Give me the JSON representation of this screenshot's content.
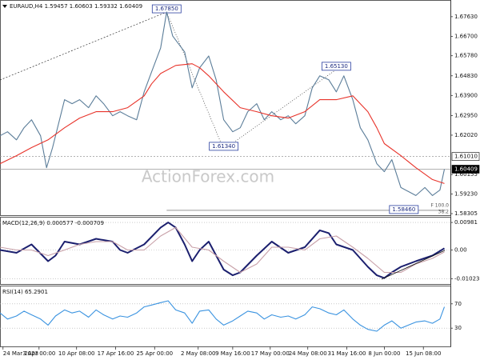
{
  "watermark": "ActionForex.com",
  "chart_data": [
    {
      "type": "line",
      "title": "EURAUD,H4  1.59457 1.60603 1.59332 1.60409",
      "xlim": [
        0,
        300
      ],
      "ylim": [
        1.5823,
        1.6842
      ],
      "xticks": [
        {
          "value": 2,
          "label": "24 Mar 2023"
        },
        {
          "value": 26,
          "label": "3 Apr 00:00"
        },
        {
          "value": 51,
          "label": "10 Apr 08:00"
        },
        {
          "value": 77,
          "label": "17 Apr 16:00"
        },
        {
          "value": 103,
          "label": "25 Apr 00:00"
        },
        {
          "value": 132,
          "label": "2 May 08:00"
        },
        {
          "value": 155,
          "label": "9 May 16:00"
        },
        {
          "value": 180,
          "label": "17 May 00:00"
        },
        {
          "value": 205,
          "label": "24 May 08:00"
        },
        {
          "value": 231,
          "label": "31 May 16:00"
        },
        {
          "value": 256,
          "label": "8 Jun 00:00"
        },
        {
          "value": 282,
          "label": "15 Jun 08:00"
        }
      ],
      "yticks": [
        {
          "value": 1.6763,
          "label": "1.67630"
        },
        {
          "value": 1.667,
          "label": "1.66700"
        },
        {
          "value": 1.6578,
          "label": "1.65780"
        },
        {
          "value": 1.6483,
          "label": "1.64830"
        },
        {
          "value": 1.639,
          "label": "1.63900"
        },
        {
          "value": 1.6295,
          "label": "1.62950"
        },
        {
          "value": 1.6202,
          "label": "1.62020"
        },
        {
          "value": 1.60155,
          "label": "1.60155"
        },
        {
          "value": 1.5923,
          "label": "1.59230"
        },
        {
          "value": 1.58305,
          "label": "1.58305"
        }
      ],
      "series": [
        {
          "color": "#5b7d99",
          "x": [
            0,
            5,
            11,
            16,
            21,
            27,
            31,
            35,
            37,
            43,
            48,
            53,
            59,
            64,
            69,
            75,
            80,
            85,
            91,
            96,
            101,
            107,
            111,
            115,
            123,
            128,
            133,
            139,
            144,
            149,
            155,
            160,
            165,
            171,
            176,
            181,
            187,
            192,
            197,
            203,
            208,
            213,
            219,
            224,
            229,
            235,
            240,
            245,
            251,
            256,
            261,
            267,
            272,
            277,
            283,
            288,
            293,
            296
          ],
          "values": [
            1.6199,
            1.6218,
            1.618,
            1.6237,
            1.6275,
            1.6199,
            1.6048,
            1.6143,
            1.6199,
            1.637,
            1.6351,
            1.637,
            1.6332,
            1.6388,
            1.6351,
            1.6294,
            1.6313,
            1.6294,
            1.6275,
            1.6407,
            1.6502,
            1.6615,
            1.6785,
            1.6672,
            1.6596,
            1.6426,
            1.6521,
            1.6577,
            1.6464,
            1.6275,
            1.6218,
            1.6237,
            1.6313,
            1.6351,
            1.6275,
            1.6313,
            1.6275,
            1.6294,
            1.6256,
            1.6294,
            1.6426,
            1.6483,
            1.6464,
            1.6407,
            1.6483,
            1.637,
            1.6237,
            1.618,
            1.6067,
            1.6029,
            1.6086,
            1.5954,
            1.5935,
            1.5916,
            1.5954,
            1.5916,
            1.5942,
            1.6041
          ]
        },
        {
          "color": "#e8332a",
          "x": [
            0,
            11,
            21,
            32,
            43,
            53,
            64,
            75,
            85,
            96,
            101,
            107,
            117,
            128,
            133,
            139,
            149,
            160,
            171,
            181,
            192,
            203,
            213,
            224,
            235,
            245,
            251,
            256,
            267,
            277,
            288,
            296
          ],
          "values": [
            1.6067,
            1.6105,
            1.6143,
            1.618,
            1.6237,
            1.6283,
            1.6313,
            1.6313,
            1.6332,
            1.6388,
            1.6445,
            1.6494,
            1.6532,
            1.654,
            1.6521,
            1.6483,
            1.6407,
            1.6332,
            1.6313,
            1.6294,
            1.6283,
            1.6313,
            1.637,
            1.637,
            1.6388,
            1.6313,
            1.6237,
            1.6162,
            1.6105,
            1.6048,
            1.5992,
            1.5973
          ]
        }
      ],
      "annotations": [
        {
          "x": 111,
          "value": 1.6785,
          "label": "1.67850"
        },
        {
          "x": 149,
          "value": 1.6134,
          "label": "1.61340"
        },
        {
          "x": 224,
          "value": 1.6513,
          "label": "1.65130"
        },
        {
          "x": 269,
          "value": 1.5846,
          "label": "1.58460"
        }
      ],
      "price_lines": [
        {
          "value": 1.6101,
          "label": "1.61010",
          "color": "#ffffff"
        },
        {
          "value": 1.60409,
          "label": "1.60409",
          "color": "#000000"
        }
      ],
      "fib_labels": [
        "F 100.0",
        "38.2"
      ]
    },
    {
      "type": "line",
      "title": "MACD(12,26,9) 0.000577 -0.000709",
      "xlim": [
        0,
        300
      ],
      "ylim": [
        -0.01212,
        0.01183
      ],
      "yticks": [
        0.00981,
        {
          "value": 0,
          "label": "0.00"
        },
        -0.010235
      ],
      "series": [
        {
          "color": "#1b1f6e",
          "x": [
            0,
            11,
            21,
            32,
            37,
            43,
            53,
            64,
            75,
            80,
            85,
            96,
            107,
            112,
            117,
            123,
            128,
            133,
            139,
            149,
            155,
            160,
            171,
            181,
            192,
            203,
            213,
            219,
            224,
            235,
            245,
            251,
            256,
            261,
            267,
            277,
            288,
            296
          ],
          "values": [
            0,
            -0.001,
            0.002,
            -0.004,
            -0.002,
            0.003,
            0.002,
            0.004,
            0.003,
            0,
            -0.001,
            0.002,
            0.008,
            0.0098,
            0.008,
            0.002,
            -0.004,
            0,
            0.003,
            -0.007,
            -0.009,
            -0.008,
            -0.002,
            0.003,
            -0.001,
            0.001,
            0.007,
            0.006,
            0.002,
            0,
            -0.006,
            -0.009,
            -0.01,
            -0.008,
            -0.006,
            -0.004,
            -0.002,
            0.0006
          ]
        },
        {
          "color": "#c8a0a8",
          "x": [
            0,
            11,
            21,
            32,
            43,
            53,
            64,
            75,
            85,
            96,
            107,
            117,
            128,
            139,
            149,
            160,
            171,
            181,
            192,
            203,
            213,
            224,
            235,
            245,
            256,
            267,
            277,
            288,
            296
          ],
          "values": [
            0.001,
            0,
            0,
            -0.002,
            0,
            0.002,
            0.003,
            0.003,
            0,
            0,
            0.005,
            0.008,
            0.001,
            0,
            -0.004,
            -0.008,
            -0.005,
            0.001,
            0.001,
            0,
            0.004,
            0.005,
            0.001,
            -0.003,
            -0.008,
            -0.008,
            -0.005,
            -0.003,
            -0.0007
          ]
        }
      ]
    },
    {
      "type": "line",
      "title": "RSI(14) 65.2901",
      "xlim": [
        0,
        300
      ],
      "ylim": [
        0,
        100
      ],
      "yticks": [
        70,
        30
      ],
      "series": [
        {
          "color": "#3a93e0",
          "x": [
            0,
            5,
            11,
            16,
            21,
            27,
            32,
            37,
            43,
            48,
            53,
            59,
            64,
            69,
            75,
            80,
            85,
            91,
            96,
            101,
            107,
            112,
            117,
            123,
            128,
            133,
            139,
            144,
            149,
            155,
            160,
            165,
            171,
            176,
            181,
            187,
            192,
            197,
            203,
            208,
            213,
            219,
            224,
            229,
            235,
            240,
            245,
            251,
            256,
            261,
            267,
            272,
            277,
            283,
            288,
            293,
            296
          ],
          "values": [
            55,
            45,
            50,
            58,
            52,
            45,
            35,
            50,
            60,
            55,
            58,
            48,
            60,
            52,
            45,
            50,
            48,
            55,
            65,
            68,
            72,
            75,
            60,
            55,
            38,
            58,
            60,
            45,
            35,
            42,
            50,
            58,
            55,
            45,
            52,
            48,
            50,
            45,
            52,
            65,
            62,
            55,
            52,
            60,
            45,
            35,
            28,
            25,
            35,
            42,
            30,
            35,
            40,
            42,
            38,
            45,
            65
          ]
        }
      ]
    }
  ]
}
